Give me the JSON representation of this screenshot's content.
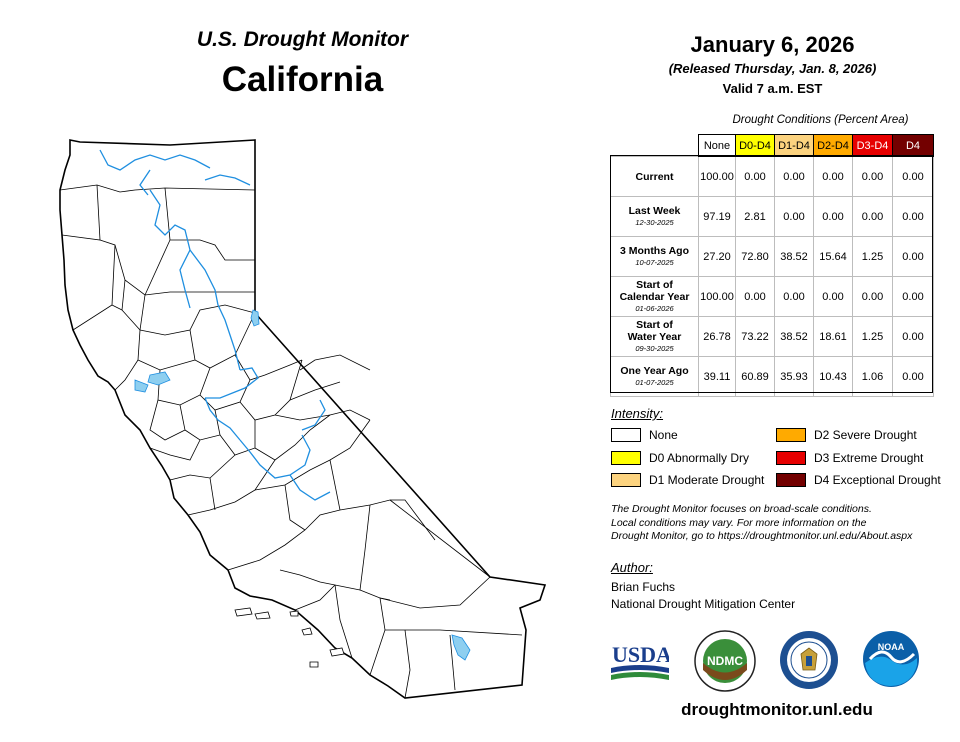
{
  "header": {
    "subtitle": "U.S. Drought Monitor",
    "state": "California",
    "date": "January 6, 2026",
    "released": "(Released Thursday, Jan. 8, 2026)",
    "valid": "Valid 7 a.m. EST"
  },
  "table": {
    "caption": "Drought Conditions (Percent Area)",
    "columns": [
      {
        "label": "None",
        "color": "#ffffff",
        "text_color": "#000000"
      },
      {
        "label": "D0-D4",
        "color": "#ffff00",
        "text_color": "#000000"
      },
      {
        "label": "D1-D4",
        "color": "#fcd37f",
        "text_color": "#000000"
      },
      {
        "label": "D2-D4",
        "color": "#ffaa00",
        "text_color": "#000000"
      },
      {
        "label": "D3-D4",
        "color": "#e60000",
        "text_color": "#ffffff"
      },
      {
        "label": "D4",
        "color": "#730000",
        "text_color": "#ffffff"
      }
    ],
    "rows": [
      {
        "label": "Current",
        "sub": "",
        "values": [
          "100.00",
          "0.00",
          "0.00",
          "0.00",
          "0.00",
          "0.00"
        ]
      },
      {
        "label": "Last Week",
        "sub": "12-30-2025",
        "values": [
          "97.19",
          "2.81",
          "0.00",
          "0.00",
          "0.00",
          "0.00"
        ]
      },
      {
        "label": "3 Months Ago",
        "sub": "10-07-2025",
        "values": [
          "27.20",
          "72.80",
          "38.52",
          "15.64",
          "1.25",
          "0.00"
        ]
      },
      {
        "label": "Start of Calendar Year",
        "sub": "01-06-2026",
        "values": [
          "100.00",
          "0.00",
          "0.00",
          "0.00",
          "0.00",
          "0.00"
        ]
      },
      {
        "label": "Start of Water Year",
        "sub": "09-30-2025",
        "values": [
          "26.78",
          "73.22",
          "38.52",
          "18.61",
          "1.25",
          "0.00"
        ]
      },
      {
        "label": "One Year Ago",
        "sub": "01-07-2025",
        "values": [
          "39.11",
          "60.89",
          "35.93",
          "10.43",
          "1.06",
          "0.00"
        ]
      }
    ]
  },
  "legend": {
    "title": "Intensity:",
    "items": [
      {
        "label": "None",
        "color": "#ffffff"
      },
      {
        "label": "D0 Abnormally Dry",
        "color": "#ffff00"
      },
      {
        "label": "D1 Moderate Drought",
        "color": "#fcd37f"
      },
      {
        "label": "D2 Severe Drought",
        "color": "#ffaa00"
      },
      {
        "label": "D3 Extreme Drought",
        "color": "#e60000"
      },
      {
        "label": "D4 Exceptional Drought",
        "color": "#730000"
      }
    ]
  },
  "note": {
    "line1": "The Drought Monitor focuses on broad-scale conditions.",
    "line2": "Local conditions may vary. For more information on the",
    "line3": "Drought Monitor, go to https://droughtmonitor.unl.edu/About.aspx"
  },
  "author": {
    "title": "Author:",
    "name": "Brian Fuchs",
    "org": "National Drought Mitigation Center"
  },
  "logos": {
    "usda": "USDA",
    "ndmc": "NDMC",
    "noaa": "NOAA"
  },
  "footer": {
    "url": "droughtmonitor.unl.edu"
  },
  "map": {
    "fill_color": "#ffffff",
    "boundary_color": "#000000",
    "water_color": "#8ecff0",
    "river_color": "#1f8fe0"
  }
}
